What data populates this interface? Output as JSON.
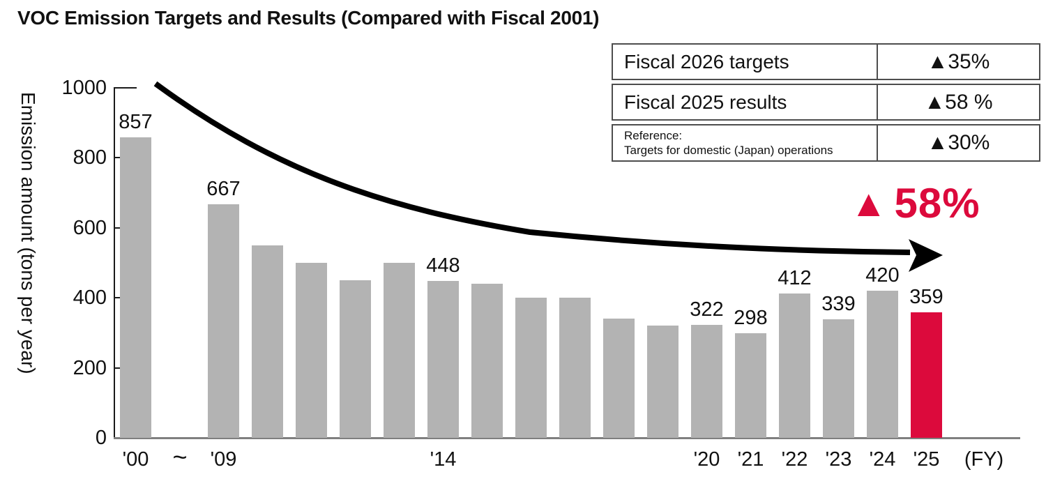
{
  "title": "VOC Emission Targets and Results (Compared with Fiscal 2001)",
  "colors": {
    "bar_gray": "#b3b3b3",
    "accent_red": "#dc0a3c",
    "axis_black": "#1a1a1a",
    "baseline_gray": "#7f7f7f",
    "table_border_gray": "#4d4d4d"
  },
  "summary_table": {
    "rows": [
      {
        "label": "Fiscal 2026 targets",
        "label2": "",
        "value": "▲35%"
      },
      {
        "label": "Fiscal 2025 results",
        "label2": "",
        "value": "▲58 %"
      },
      {
        "label": "Reference:",
        "label2": "Targets for domestic (Japan) operations",
        "value": "▲30%"
      }
    ]
  },
  "highlight": {
    "triangle": "▲",
    "value": "58%"
  },
  "chart_data": {
    "type": "bar",
    "title": "VOC Emission Targets and Results (Compared with Fiscal 2001)",
    "ylabel": "Emission amount (tons per year)",
    "ylim": [
      0,
      1000
    ],
    "yticks": [
      0,
      200,
      400,
      600,
      800,
      1000
    ],
    "grid": false,
    "gap_symbol": "~",
    "axis_suffix": "(FY)",
    "bars": [
      {
        "year": "'00",
        "value": 857,
        "label": "857",
        "highlight": false
      },
      {
        "year": "'09",
        "value": 667,
        "label": "667",
        "highlight": false
      },
      {
        "year": "",
        "value": 550,
        "label": "",
        "highlight": false
      },
      {
        "year": "",
        "value": 500,
        "label": "",
        "highlight": false
      },
      {
        "year": "",
        "value": 450,
        "label": "",
        "highlight": false
      },
      {
        "year": "",
        "value": 500,
        "label": "",
        "highlight": false
      },
      {
        "year": "'14",
        "value": 448,
        "label": "448",
        "highlight": false
      },
      {
        "year": "",
        "value": 440,
        "label": "",
        "highlight": false
      },
      {
        "year": "",
        "value": 400,
        "label": "",
        "highlight": false
      },
      {
        "year": "",
        "value": 400,
        "label": "",
        "highlight": false
      },
      {
        "year": "",
        "value": 340,
        "label": "",
        "highlight": false
      },
      {
        "year": "",
        "value": 320,
        "label": "",
        "highlight": false
      },
      {
        "year": "'20",
        "value": 322,
        "label": "322",
        "highlight": false
      },
      {
        "year": "'21",
        "value": 298,
        "label": "298",
        "highlight": false
      },
      {
        "year": "'22",
        "value": 412,
        "label": "412",
        "highlight": false
      },
      {
        "year": "'23",
        "value": 339,
        "label": "339",
        "highlight": false
      },
      {
        "year": "'24",
        "value": 420,
        "label": "420",
        "highlight": false
      },
      {
        "year": "'25",
        "value": 359,
        "label": "359",
        "highlight": true
      }
    ]
  }
}
